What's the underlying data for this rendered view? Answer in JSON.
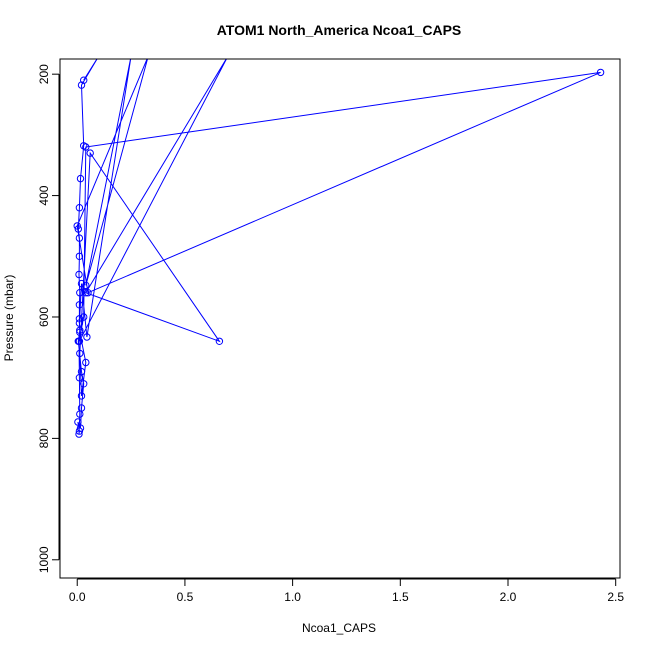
{
  "chart_data": {
    "type": "line",
    "title": "ATOM1 North_America Ncoa1_CAPS",
    "xlabel": "Ncoa1_CAPS",
    "ylabel": "Pressure (mbar)",
    "xlim": [
      -0.08,
      2.52
    ],
    "ylim": [
      1030,
      175
    ],
    "y_reversed": true,
    "grid": false,
    "legend": "none",
    "color": "#0000ff",
    "x_ticks": [
      0,
      0.5,
      1,
      1.5,
      2,
      2.5
    ],
    "x_tick_labels": [
      "0.0",
      "0.5",
      "1.0",
      "1.5",
      "2.0",
      "2.5"
    ],
    "y_ticks": [
      200,
      400,
      600,
      800,
      1000
    ],
    "y_tick_labels": [
      "200",
      "400",
      "600",
      "800",
      "1000"
    ],
    "series": [
      {
        "points": [
          {
            "x": 0.03,
            "y": 210
          },
          {
            "x": 0.1,
            "y": 170
          },
          {
            "x": 0.02,
            "y": 218
          },
          {
            "x": 0.03,
            "y": 318
          },
          {
            "x": 0.015,
            "y": 372
          },
          {
            "x": 0.01,
            "y": 420
          },
          {
            "x": 0.005,
            "y": 455
          },
          {
            "x": 0.01,
            "y": 470
          },
          {
            "x": 0.01,
            "y": 500
          },
          {
            "x": 0.008,
            "y": 530
          },
          {
            "x": 0.012,
            "y": 560
          },
          {
            "x": 0.01,
            "y": 580
          },
          {
            "x": 0.01,
            "y": 603
          },
          {
            "x": 0.012,
            "y": 622
          },
          {
            "x": 0.005,
            "y": 640
          },
          {
            "x": 0.02,
            "y": 690
          },
          {
            "x": 0.03,
            "y": 710
          },
          {
            "x": 0.02,
            "y": 750
          },
          {
            "x": 0.015,
            "y": 783
          },
          {
            "x": 0.003,
            "y": 773
          },
          {
            "x": 0.01,
            "y": 788
          },
          {
            "x": 0.008,
            "y": 793
          },
          {
            "x": 0.012,
            "y": 760
          },
          {
            "x": 0.01,
            "y": 700
          },
          {
            "x": 0.008,
            "y": 640
          },
          {
            "x": 0.03,
            "y": 600
          },
          {
            "x": 0.04,
            "y": 320
          },
          {
            "x": 2.43,
            "y": 197
          },
          {
            "x": 0.05,
            "y": 560
          },
          {
            "x": 0.0,
            "y": 450
          },
          {
            "x": 0.33,
            "y": 170
          },
          {
            "x": 0.04,
            "y": 548
          },
          {
            "x": 0.25,
            "y": 170
          },
          {
            "x": 0.045,
            "y": 633
          },
          {
            "x": 0.02,
            "y": 545
          },
          {
            "x": 0.01,
            "y": 610
          },
          {
            "x": 0.012,
            "y": 625
          },
          {
            "x": 0.04,
            "y": 675
          },
          {
            "x": 0.02,
            "y": 730
          },
          {
            "x": 0.012,
            "y": 660
          },
          {
            "x": 0.06,
            "y": 330
          },
          {
            "x": 0.66,
            "y": 640
          },
          {
            "x": 0.04,
            "y": 560
          },
          {
            "x": 0.7,
            "y": 170
          },
          {
            "x": 0.01,
            "y": 640
          }
        ]
      }
    ]
  }
}
